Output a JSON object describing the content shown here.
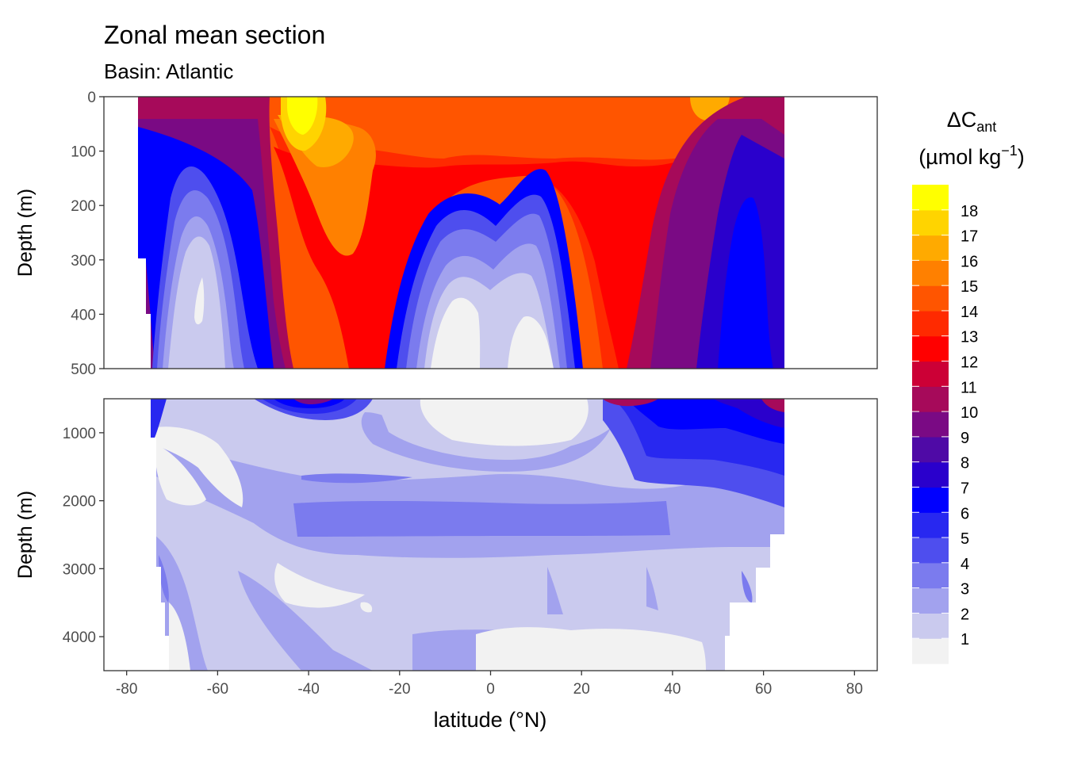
{
  "chart_data": {
    "type": "contour",
    "title": "Zonal mean section",
    "subtitle": "Basin: Atlantic",
    "xlabel": "latitude (°N)",
    "ylabel": "Depth (m)",
    "xlim": [
      -85,
      85
    ],
    "x_ticks": [
      -80,
      -60,
      -40,
      -20,
      0,
      20,
      40,
      60,
      80
    ],
    "x_tick_labels": [
      "-80",
      "-60",
      "-40",
      "-20",
      "0",
      "20",
      "40",
      "60",
      "80"
    ],
    "grid": true,
    "data_lat_range": [
      -78,
      64
    ],
    "panels": [
      {
        "name": "upper",
        "ylabel": "Depth (m)",
        "ylim": [
          0,
          500
        ],
        "y_ticks": [
          0,
          100,
          200,
          300,
          400,
          500
        ],
        "y_tick_labels": [
          "0",
          "100",
          "200",
          "300",
          "400",
          "500"
        ],
        "description_lat": [
          -75,
          -65,
          -55,
          -45,
          -35,
          -25,
          -15,
          -5,
          0,
          10,
          20,
          30,
          40,
          50,
          60
        ],
        "surface_values": [
          12,
          10,
          11,
          18,
          15,
          15,
          15,
          14,
          15,
          15,
          15,
          14,
          13,
          16,
          13
        ],
        "values_at_400m": [
          3,
          1,
          4,
          13,
          13,
          8,
          2,
          1,
          2,
          1,
          6,
          12,
          11,
          7,
          6
        ]
      },
      {
        "name": "lower",
        "ylabel": "Depth (m)",
        "ylim": [
          500,
          4500
        ],
        "y_ticks": [
          1000,
          2000,
          3000,
          4000
        ],
        "y_tick_labels": [
          "1000",
          "2000",
          "3000",
          "4000"
        ],
        "description_lat": [
          -70,
          -50,
          -30,
          -10,
          10,
          30,
          50,
          60
        ],
        "values_at_1000m": [
          1,
          2,
          3,
          1,
          1,
          3,
          5,
          7
        ],
        "values_at_2500m": [
          2,
          2,
          4,
          4,
          4,
          4,
          3,
          3
        ],
        "values_at_4000m": [
          1,
          2,
          2,
          1,
          1,
          1,
          2,
          2
        ]
      }
    ],
    "legend": {
      "title_main": "ΔC",
      "title_sub": "ant",
      "units_main": "(µmol kg",
      "units_sup": "−1",
      "units_close": ")",
      "position": "right",
      "levels": [
        "1",
        "2",
        "3",
        "4",
        "5",
        "6",
        "7",
        "8",
        "9",
        "10",
        "11",
        "12",
        "13",
        "14",
        "15",
        "16",
        "17",
        "18"
      ],
      "colors": [
        "#f2f2f2",
        "#cacaee",
        "#a2a2ee",
        "#7b7bee",
        "#4e4eee",
        "#2828f0",
        "#0000ff",
        "#2a00cc",
        "#4f0aa6",
        "#7a0a84",
        "#a60a5a",
        "#cc0036",
        "#ff0000",
        "#ff2a00",
        "#ff5500",
        "#ff8000",
        "#ffaa00",
        "#ffd400",
        "#ffff00"
      ]
    }
  }
}
